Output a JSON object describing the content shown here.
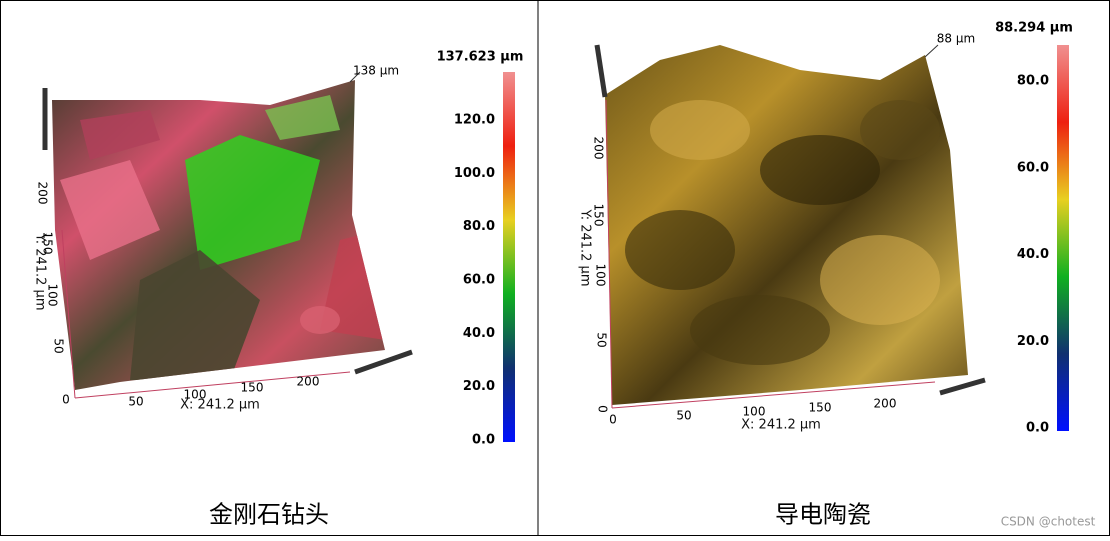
{
  "panels": [
    {
      "caption": "金刚石钻头",
      "surface": {
        "peak_label": "138 µm",
        "x_label": "X: 241.2 µm",
        "y_label": "Y: 241.2 µm",
        "x_ticks": [
          "0",
          "50",
          "100",
          "150",
          "200"
        ],
        "y_ticks": [
          "50",
          "100",
          "150",
          "200"
        ]
      },
      "colorbar": {
        "max_label": "137.623 µm",
        "ticks": [
          "0.0",
          "20.0",
          "40.0",
          "60.0",
          "80.0",
          "100.0",
          "120.0"
        ]
      }
    },
    {
      "caption": "导电陶瓷",
      "surface": {
        "peak_label": "88 µm",
        "x_label": "X: 241.2 µm",
        "y_label": "Y: 241.2 µm",
        "x_ticks": [
          "0",
          "50",
          "100",
          "150",
          "200"
        ],
        "y_ticks": [
          "0",
          "50",
          "100",
          "150",
          "200"
        ]
      },
      "colorbar": {
        "max_label": "88.294 µm",
        "ticks": [
          "0.0",
          "20.0",
          "40.0",
          "60.0",
          "80.0"
        ]
      }
    }
  ],
  "watermark": "CSDN @chotest"
}
